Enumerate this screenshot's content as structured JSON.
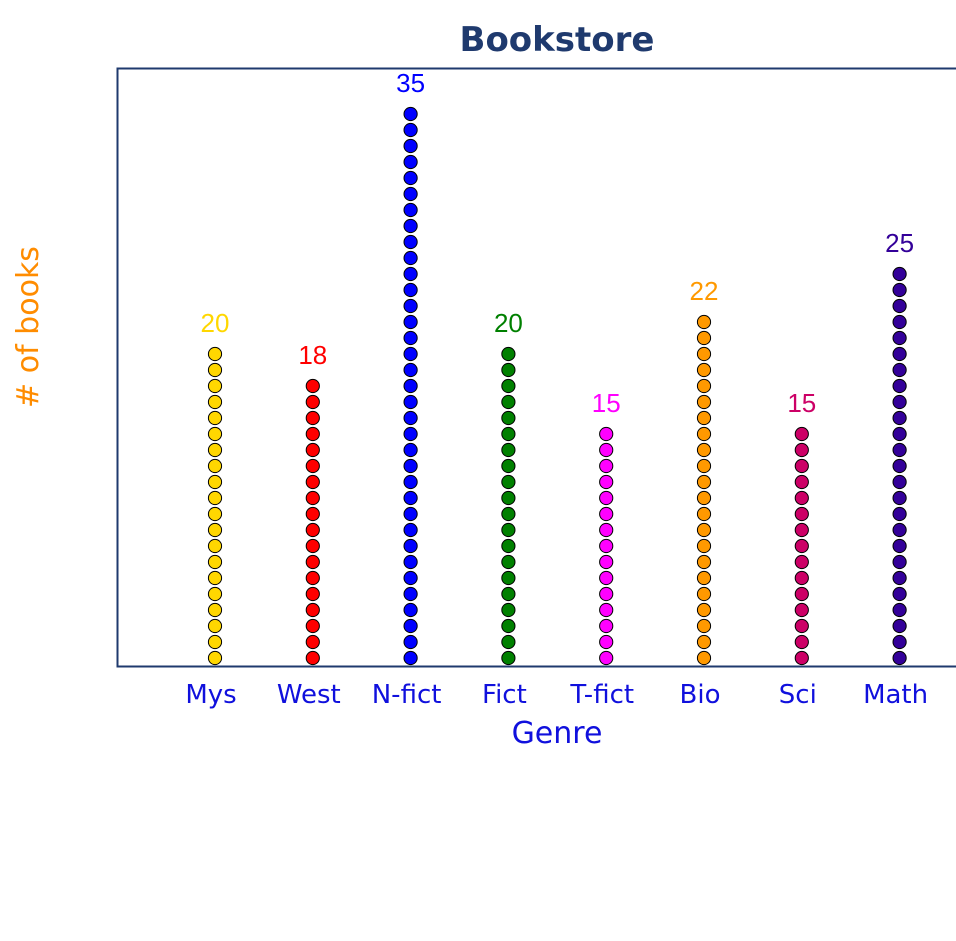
{
  "chart_data": {
    "type": "scatter",
    "subtype": "dot-column",
    "title": "Bookstore",
    "xlabel": "Genre",
    "ylabel": "# of books",
    "categories": [
      "Mys",
      "West",
      "N-fict",
      "Fict",
      "T-fict",
      "Bio",
      "Sci",
      "Math"
    ],
    "values": [
      20,
      18,
      35,
      20,
      15,
      22,
      15,
      25
    ],
    "data_labels": [
      "20",
      "18",
      "35",
      "20",
      "15",
      "22",
      "15",
      "25"
    ],
    "colors": [
      "#FFD700",
      "#FF0000",
      "#0000FF",
      "#008000",
      "#FF00FF",
      "#FF9900",
      "#CC0066",
      "#330099"
    ],
    "ylim": [
      0,
      35
    ],
    "grid": false,
    "legend": "none",
    "title_color": "#1F3A6E",
    "xlabel_color": "#1010DD",
    "ylabel_color": "#FF8C00",
    "tick_color": "#1010DD",
    "axis_color": "#1F3A6E"
  }
}
